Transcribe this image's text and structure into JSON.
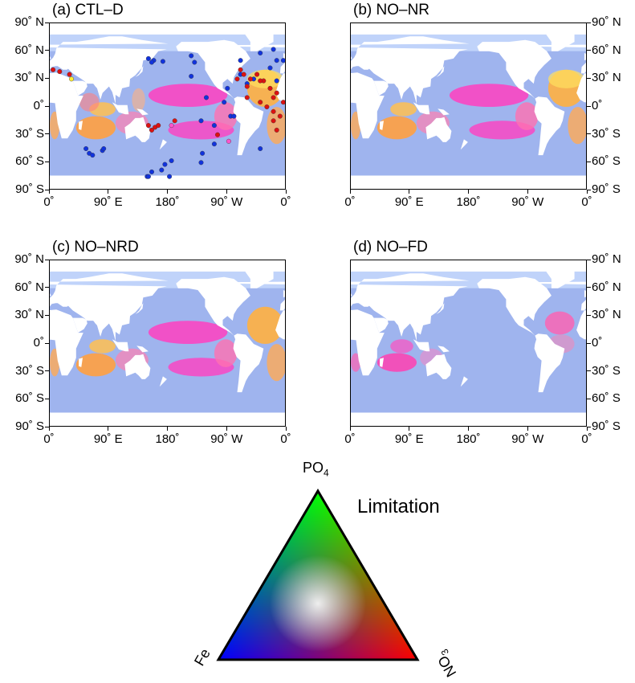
{
  "panels": [
    {
      "id": "a",
      "title": "(a) CTL–D",
      "lat_side": "left",
      "show_points": true
    },
    {
      "id": "b",
      "title": "(b) NO–NR",
      "lat_side": "right",
      "show_points": false
    },
    {
      "id": "c",
      "title": "(c) NO–NRD",
      "lat_side": "left",
      "show_points": false
    },
    {
      "id": "d",
      "title": "(d) NO–FD",
      "lat_side": "right",
      "show_points": false
    }
  ],
  "lat_labels": [
    "90˚ N",
    "60˚ N",
    "30˚ N",
    "0˚",
    "30˚ S",
    "60˚ S",
    "90˚ S"
  ],
  "lon_labels": [
    "0˚",
    "90˚ E",
    "180˚",
    "90˚ W",
    "0˚"
  ],
  "legend": {
    "title": "Limitation",
    "corner_top": "PO",
    "corner_top_sub": "4",
    "corner_left": "Fe",
    "corner_right": "NO",
    "corner_right_sub": "3"
  },
  "colors": {
    "ocean_base": "#9fb4ee",
    "land": "#ffffff",
    "po4": "#00ff00",
    "fe": "#0000ff",
    "no3": "#ff0000",
    "point_fe": "#1133dd",
    "point_no3": "#dd1111"
  },
  "observation_points": {
    "fe": [
      [
        148,
        -75
      ],
      [
        155,
        -70
      ],
      [
        150,
        -75
      ],
      [
        -178,
        -75
      ],
      [
        170,
        -68
      ],
      [
        175,
        -62
      ],
      [
        -175,
        -58
      ],
      [
        -130,
        -60
      ],
      [
        -128,
        -50
      ],
      [
        -110,
        -40
      ],
      [
        -40,
        -45
      ],
      [
        55,
        -45
      ],
      [
        60,
        -50
      ],
      [
        65,
        -52
      ],
      [
        80,
        -47
      ],
      [
        82,
        -45
      ],
      [
        150,
        52
      ],
      [
        158,
        50
      ],
      [
        155,
        48
      ],
      [
        172,
        49
      ],
      [
        -145,
        55
      ],
      [
        -140,
        48
      ],
      [
        -145,
        33
      ],
      [
        -122,
        10
      ],
      [
        -95,
        5
      ],
      [
        -90,
        20
      ],
      [
        -85,
        -10
      ],
      [
        -80,
        -10
      ],
      [
        -70,
        50
      ],
      [
        -40,
        58
      ],
      [
        -20,
        62
      ],
      [
        -15,
        50
      ],
      [
        -5,
        50
      ],
      [
        -15,
        28
      ],
      [
        -25,
        42
      ],
      [
        -50,
        30
      ],
      [
        -60,
        25
      ],
      [
        -70,
        35
      ],
      [
        -110,
        -20
      ],
      [
        -130,
        -15
      ]
    ],
    "no3": [
      [
        15,
        38
      ],
      [
        5,
        40
      ],
      [
        30,
        35
      ],
      [
        150,
        -20
      ],
      [
        155,
        -25
      ],
      [
        160,
        -22
      ],
      [
        165,
        -20
      ],
      [
        -170,
        -15
      ],
      [
        -105,
        -30
      ],
      [
        -15,
        -25
      ],
      [
        -20,
        -15
      ],
      [
        -10,
        -10
      ],
      [
        -5,
        5
      ],
      [
        -20,
        10
      ],
      [
        -15,
        15
      ],
      [
        -25,
        20
      ],
      [
        -35,
        28
      ],
      [
        -40,
        28
      ],
      [
        -45,
        35
      ],
      [
        -55,
        30
      ],
      [
        -60,
        22
      ],
      [
        -65,
        35
      ],
      [
        -70,
        40
      ],
      [
        -75,
        30
      ],
      [
        -60,
        10
      ],
      [
        -40,
        5
      ],
      [
        -30,
        0
      ],
      [
        -20,
        -5
      ]
    ],
    "pink": [
      [
        -88,
        -37
      ],
      [
        -175,
        -20
      ]
    ],
    "yellow": [
      [
        33,
        30
      ]
    ]
  }
}
